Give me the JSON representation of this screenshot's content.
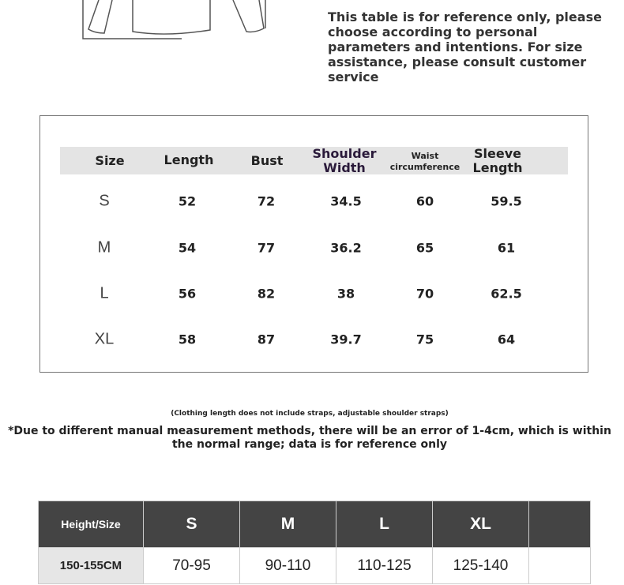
{
  "note": "This table is for reference only, please choose according to personal parameters and intentions. For size assistance, please consult customer service",
  "size_table": {
    "headers": [
      "Size",
      "Length",
      "Bust",
      "Shoulder Width",
      "Waist circumference",
      "Sleeve Length"
    ],
    "rows": [
      [
        "S",
        "52",
        "72",
        "34.5",
        "60",
        "59.5"
      ],
      [
        "M",
        "54",
        "77",
        "36.2",
        "65",
        "61"
      ],
      [
        "L",
        "56",
        "82",
        "38",
        "70",
        "62.5"
      ],
      [
        "XL",
        "58",
        "87",
        "39.7",
        "75",
        "64"
      ]
    ]
  },
  "footnote_small": "(Clothing length does not include straps, adjustable shoulder straps)",
  "footnote": "*Due to different manual measurement methods, there will be an error of 1-4cm, which is within the normal range; data is for reference only",
  "weight_table": {
    "headers": [
      "Height/Size",
      "S",
      "M",
      "L",
      "XL",
      ""
    ],
    "rows": [
      [
        "150-155CM",
        "70-95",
        "90-110",
        "110-125",
        "125-140",
        ""
      ]
    ]
  }
}
